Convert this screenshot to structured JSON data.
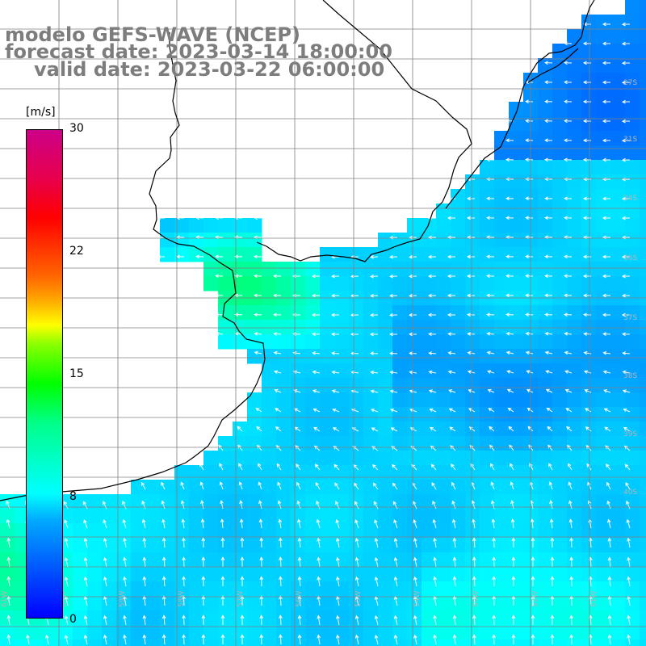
{
  "title": {
    "line1": "modelo GEFS-WAVE (NCEP)",
    "line2": "forecast date: 2023-03-14 18:00:00",
    "line3": "valid date: 2023-03-22 06:00:00"
  },
  "colorbar": {
    "unit": "[m/s]",
    "range": [
      0,
      30
    ],
    "ticks": [
      "30",
      "22",
      "15",
      "8",
      "0"
    ],
    "tick_values": [
      30,
      22,
      15,
      8,
      0
    ],
    "colors": [
      "#0000ff",
      "#00aaff",
      "#00ffff",
      "#00ff00",
      "#ffff00",
      "#ff6600",
      "#ff0000",
      "#cc0088"
    ]
  },
  "grid": {
    "lat_labels": [
      "27S",
      "31S",
      "34S",
      "36S",
      "37S",
      "38S",
      "39S",
      "40S"
    ],
    "lon_labels": [
      "61W",
      "60W",
      "59W",
      "58W",
      "57W",
      "56W",
      "55W",
      "54W",
      "53W",
      "52W",
      "51W",
      "50W"
    ]
  },
  "colors": {
    "land": "#ffffff",
    "coast": "#000000",
    "grid": "#808080",
    "arrows": "#ffffff",
    "title": "#7d7d7d"
  }
}
